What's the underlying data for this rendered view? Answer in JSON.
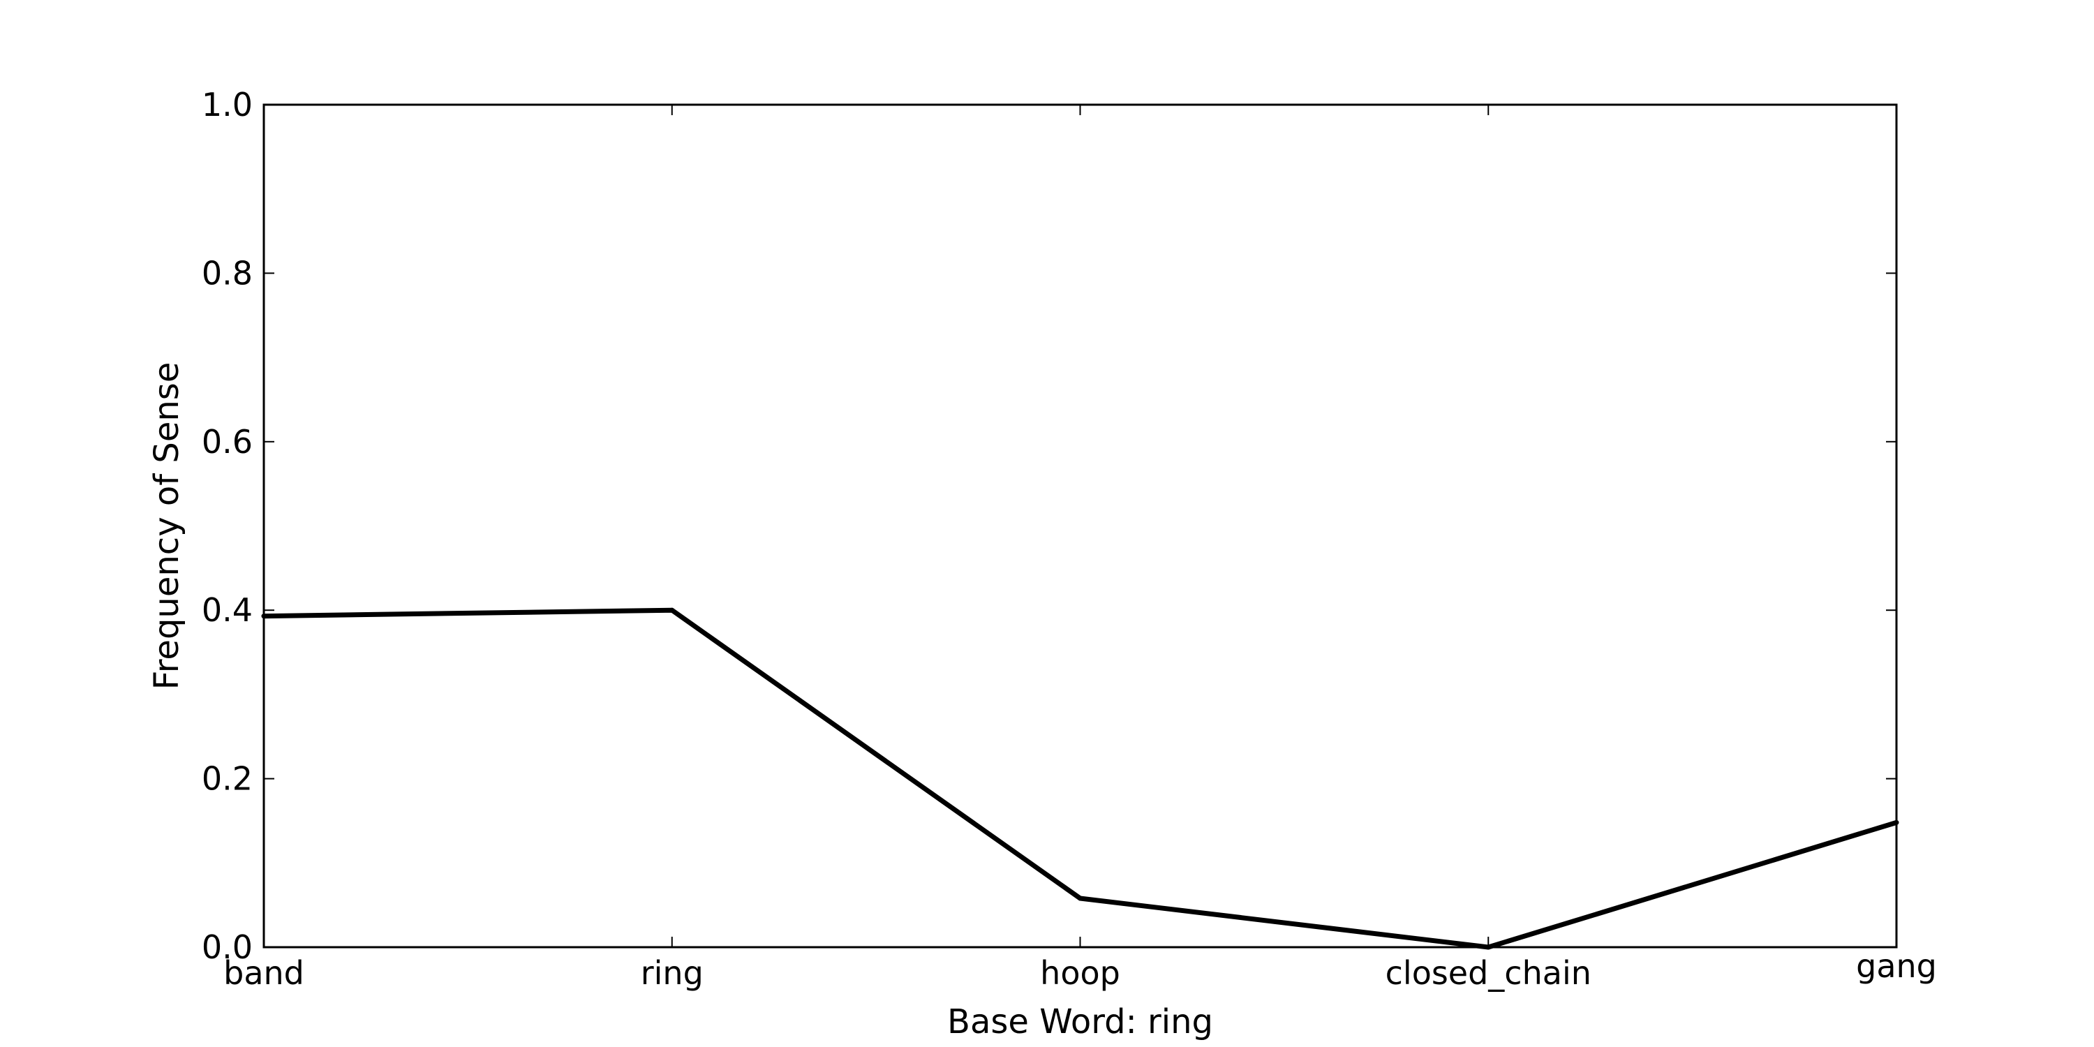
{
  "chart_data": {
    "type": "line",
    "categories": [
      "band",
      "ring",
      "hoop",
      "closed_chain",
      "gang"
    ],
    "series": [
      {
        "values": [
          0.393,
          0.4,
          0.058,
          0.0,
          0.148
        ],
        "color": "#000000"
      }
    ],
    "title": "",
    "xlabel": "Base Word: ring",
    "ylabel": "Frequency of Sense",
    "ylim": [
      0.0,
      1.0
    ],
    "yticks": [
      "0.0",
      "0.2",
      "0.4",
      "0.6",
      "0.8",
      "1.0"
    ],
    "grid": false
  }
}
